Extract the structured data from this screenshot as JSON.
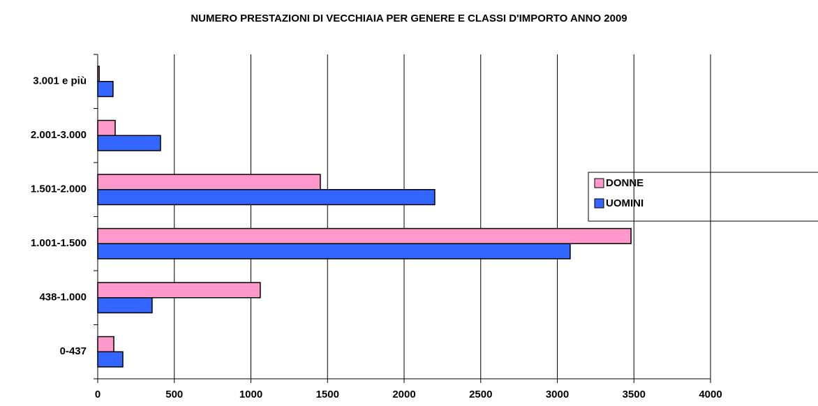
{
  "chart_data": {
    "type": "bar",
    "orientation": "horizontal",
    "title": "NUMERO PRESTAZIONI DI VECCHIAIA PER GENERE E CLASSI D'IMPORTO ANNO 2009",
    "categories": [
      "3.001 e più",
      "2.001-3.000",
      "1.501-2.000",
      "1.001-1.500",
      "438-1.000",
      "0-437"
    ],
    "series": [
      {
        "name": "DONNE",
        "color": "#ff99cc",
        "values": [
          10,
          114,
          1453,
          3481,
          1061,
          105
        ]
      },
      {
        "name": "UOMINI",
        "color": "#3366ff",
        "values": [
          100,
          410,
          2200,
          3084,
          355,
          164
        ]
      }
    ],
    "xlim": [
      0,
      4000
    ],
    "xticks": [
      0,
      500,
      1000,
      1500,
      2000,
      2500,
      3000,
      3500,
      4000
    ],
    "grid": true,
    "legend": "right"
  }
}
